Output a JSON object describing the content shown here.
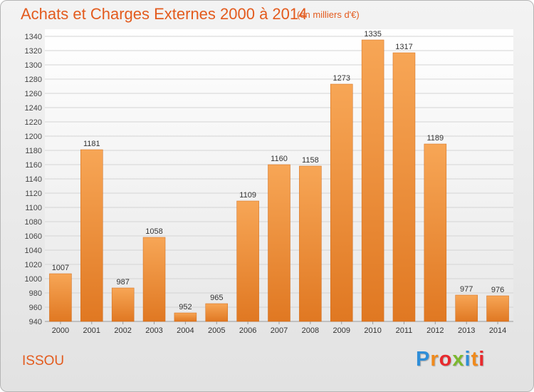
{
  "header": {
    "title": "Achats et Charges Externes 2000 à 2014",
    "unit": "(en milliers d'€)"
  },
  "footer": {
    "commune": "ISSOU",
    "logo": "Proxiti"
  },
  "colors": {
    "accent": "#e35b1e",
    "bar_top": "#f7a656",
    "bar_bottom": "#e07822",
    "logo_letters": [
      "#2f8ed8",
      "#f08a1c",
      "#e8292d",
      "#7cb82f",
      "#2f8ed8",
      "#f08a1c",
      "#e8292d"
    ]
  },
  "chart_data": {
    "type": "bar",
    "title": "Achats et Charges Externes 2000 à 2014",
    "subtitle": "(en milliers d'€)",
    "categories": [
      "2000",
      "2001",
      "2002",
      "2003",
      "2004",
      "2005",
      "2006",
      "2007",
      "2008",
      "2009",
      "2010",
      "2011",
      "2012",
      "2013",
      "2014"
    ],
    "values": [
      1007,
      1181,
      987,
      1058,
      952,
      965,
      1109,
      1160,
      1158,
      1273,
      1335,
      1317,
      1189,
      977,
      976
    ],
    "xlabel": "",
    "ylabel": "",
    "ylim": [
      940,
      1350
    ],
    "yticks": [
      940,
      960,
      980,
      1000,
      1020,
      1040,
      1060,
      1080,
      1100,
      1120,
      1140,
      1160,
      1180,
      1200,
      1220,
      1240,
      1260,
      1280,
      1300,
      1320,
      1340
    ],
    "grid": true,
    "legend": "none"
  }
}
